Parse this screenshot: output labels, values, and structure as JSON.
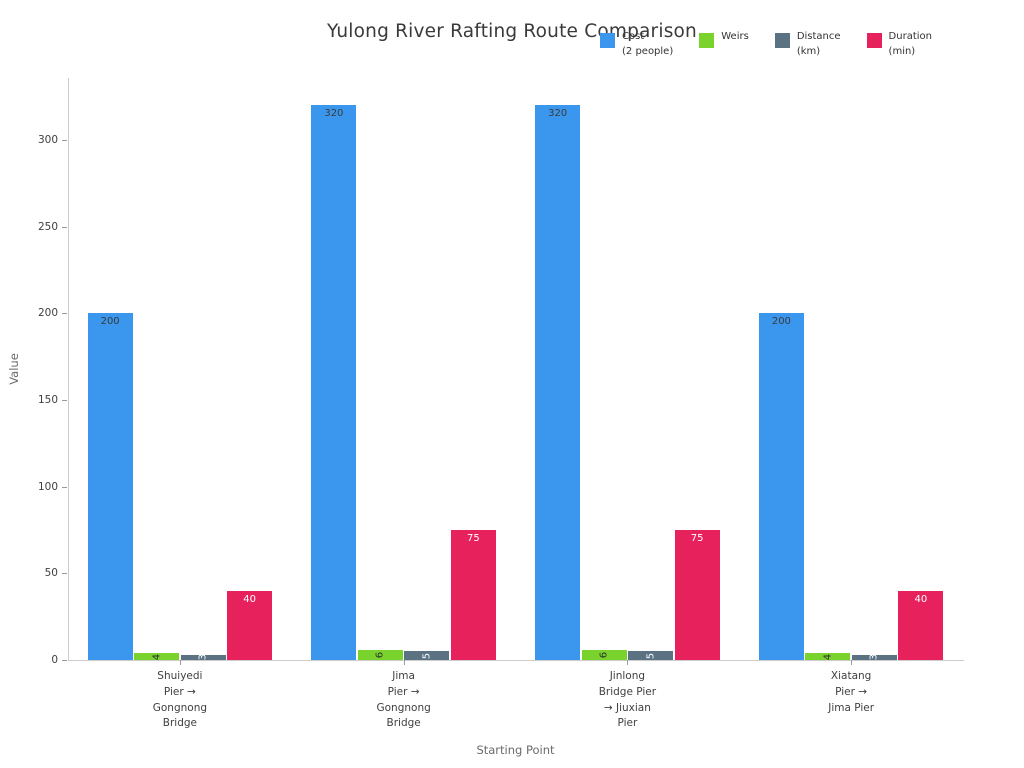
{
  "chart_data": {
    "type": "bar",
    "title": "Yulong River Rafting Route Comparison",
    "xlabel": "Starting Point",
    "ylabel": "Value",
    "ylim": [
      0,
      336
    ],
    "yticks": [
      0,
      50,
      100,
      150,
      200,
      250,
      300
    ],
    "grid": false,
    "legend_position": "top-right",
    "categories": [
      "Shuiyedi\nPier →\nGongnong\nBridge",
      "Jima\nPier →\nGongnong\nBridge",
      "Jinlong\nBridge Pier\n→ Jiuxian\nPier",
      "Xiatang\nPier →\nJima Pier"
    ],
    "series": [
      {
        "name": "Cost (2 people)",
        "legend_label": "Cost\n(2 people)",
        "color": "#3a97ed",
        "values": [
          200,
          320,
          320,
          200
        ],
        "label_color": "#3a3a3a",
        "label_rotated": false
      },
      {
        "name": "Weirs",
        "legend_label": "Weirs",
        "color": "#7ad32c",
        "values": [
          4,
          6,
          6,
          4
        ],
        "label_color": "#2f2f2f",
        "label_rotated": true
      },
      {
        "name": "Distance (km)",
        "legend_label": "Distance\n(km)",
        "color": "#5b7282",
        "values": [
          3,
          5,
          5,
          3
        ],
        "label_color": "#ffffff",
        "label_rotated": true
      },
      {
        "name": "Duration (min)",
        "legend_label": "Duration\n(min)",
        "color": "#e7215c",
        "values": [
          40,
          75,
          75,
          40
        ],
        "label_color": "#ffffff",
        "label_rotated": false
      }
    ]
  }
}
